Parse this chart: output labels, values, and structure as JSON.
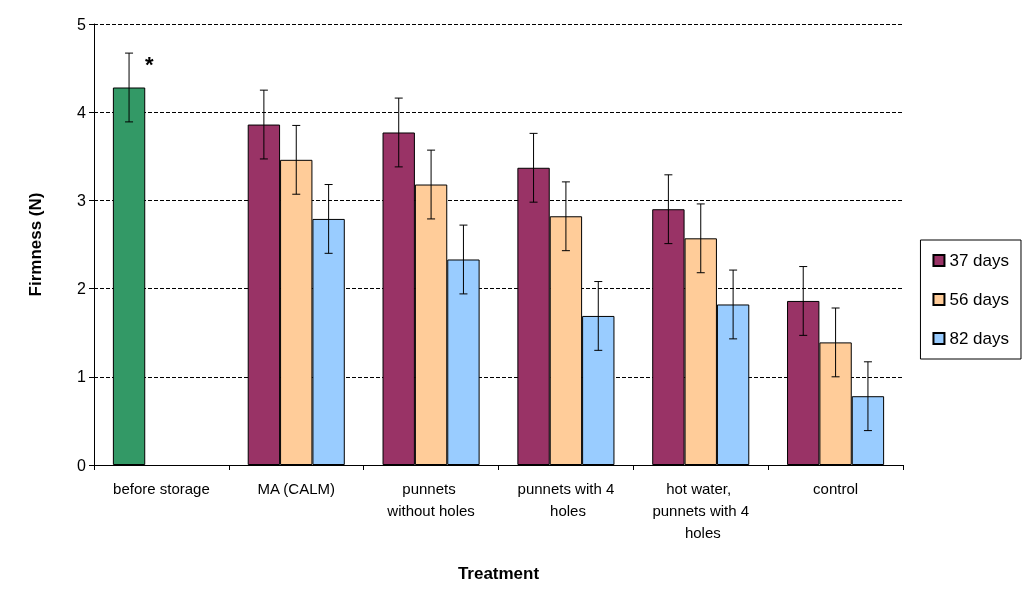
{
  "chart_data": {
    "type": "bar",
    "xlabel": "Treatment",
    "ylabel": "Firmness (N)",
    "categories": [
      "before storage",
      "MA (CALM)",
      "punnets without holes",
      "punnets with 4 holes",
      "hot water, punnets with 4 holes",
      "control"
    ],
    "series": [
      {
        "name": "37 days",
        "color": "#993366",
        "colors": [
          "#339966",
          "#993366",
          "#993366",
          "#993366",
          "#993366",
          "#993366"
        ],
        "values": [
          4.28,
          3.86,
          3.77,
          3.37,
          2.9,
          1.86
        ],
        "errors": [
          0.39,
          0.39,
          0.39,
          0.39,
          0.39,
          0.39
        ]
      },
      {
        "name": "56 days",
        "color": "#ffcc99",
        "values": [
          null,
          3.46,
          3.18,
          2.82,
          2.57,
          1.39
        ],
        "errors": [
          null,
          0.39,
          0.39,
          0.39,
          0.39,
          0.39
        ]
      },
      {
        "name": "82 days",
        "color": "#99ccff",
        "values": [
          null,
          2.79,
          2.33,
          1.69,
          1.82,
          0.78
        ],
        "errors": [
          null,
          0.39,
          0.39,
          0.39,
          0.39,
          0.39
        ]
      }
    ],
    "ylim": [
      0,
      5
    ],
    "yticks": [
      0,
      1,
      2,
      3,
      4,
      5
    ],
    "grid": "y",
    "legend": "right",
    "annotations": [
      "*"
    ]
  }
}
